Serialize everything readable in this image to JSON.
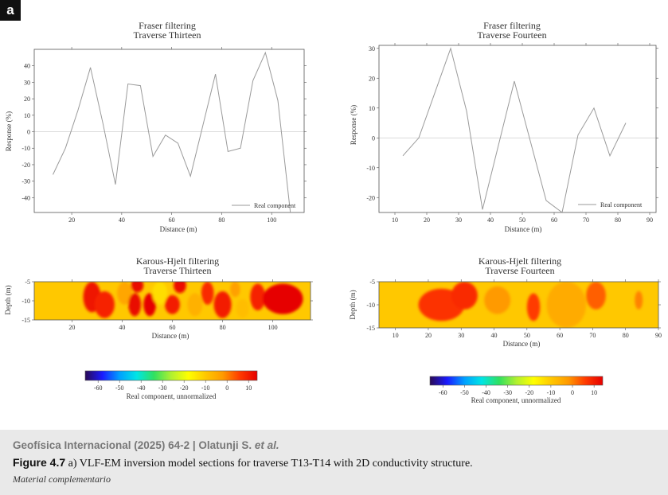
{
  "panel_label": "a",
  "caption": {
    "journal": "Geofísica Internacional (2025) 64-2 | Olatunji S. ",
    "authors_suffix": "et al.",
    "figure_number": "Figure 4.7",
    "figure_text": " a) VLF-EM inversion model sections for traverse T13-T14 with 2D conductivity structure.",
    "material": "Material complementario"
  },
  "colors": {
    "line": "#9a9a9a",
    "axis": "#555555",
    "colorscale": [
      "#2a0a55",
      "#1a1aff",
      "#00a0ff",
      "#00e5e5",
      "#30e060",
      "#b0f030",
      "#ffff00",
      "#ffc800",
      "#ff9a00",
      "#ff3a00",
      "#e60000"
    ]
  },
  "chart_data": [
    {
      "type": "line",
      "id": "fraser-t13",
      "title": "Fraser filtering",
      "subtitle": "Traverse Thirteen",
      "xlabel": "Distance (m)",
      "ylabel": "Response (%)",
      "xlim": [
        5,
        113
      ],
      "ylim": [
        -49,
        50
      ],
      "xticks": [
        20,
        40,
        60,
        80,
        100
      ],
      "yticks": [
        40,
        30,
        20,
        10,
        0,
        -10,
        -20,
        -30,
        -40
      ],
      "series": [
        {
          "name": "Real component",
          "x": [
            12.5,
            17.5,
            22.5,
            27.5,
            32.5,
            37.5,
            42.5,
            47.5,
            52.5,
            57.5,
            62.5,
            67.5,
            72.5,
            77.5,
            82.5,
            87.5,
            92.5,
            97.5,
            102.5,
            107.5
          ],
          "values": [
            -26,
            -10,
            13,
            39,
            5,
            -32,
            29,
            28,
            -15,
            -2,
            -7,
            -27,
            4,
            35,
            -12,
            -10,
            31,
            48,
            19,
            -49
          ]
        }
      ],
      "legend": "bottom-right"
    },
    {
      "type": "line",
      "id": "fraser-t14",
      "title": "Fraser filtering",
      "subtitle": "Traverse Fourteen",
      "xlabel": "Distance (m)",
      "ylabel": "Response (%)",
      "xlim": [
        5,
        92
      ],
      "ylim": [
        -25,
        31
      ],
      "xticks": [
        10,
        20,
        30,
        40,
        50,
        60,
        70,
        80,
        90
      ],
      "yticks": [
        30,
        20,
        10,
        0,
        -10,
        -20
      ],
      "series": [
        {
          "name": "Real component",
          "x": [
            12.5,
            17.5,
            27.5,
            32.5,
            37.5,
            47.5,
            57.5,
            62.5,
            67.5,
            72.5,
            77.5,
            82.5
          ],
          "values": [
            -6,
            0,
            30,
            9,
            -24,
            19,
            -21,
            -25,
            1,
            10,
            -6,
            5
          ]
        }
      ],
      "legend": "bottom-right"
    },
    {
      "type": "heatmap",
      "id": "karous-t13",
      "title": "Karous-Hjelt filtering",
      "subtitle": "Traverse Thirteen",
      "xlabel": "Distance (m)",
      "ylabel": "Depth (m)",
      "xlim": [
        5,
        115
      ],
      "ylim": [
        -15,
        -5
      ],
      "xticks": [
        20,
        40,
        60,
        80,
        100
      ],
      "yticks": [
        -5,
        -10,
        -15
      ],
      "anomalies": [
        {
          "x": 28,
          "y": -9,
          "rx": 3.5,
          "ry": 4,
          "value": 11
        },
        {
          "x": 33,
          "y": -11,
          "rx": 4,
          "ry": 3.5,
          "value": 9
        },
        {
          "x": 41,
          "y": -8,
          "rx": 3,
          "ry": 3,
          "value": -4
        },
        {
          "x": 45,
          "y": -11,
          "rx": 2.5,
          "ry": 3,
          "value": 13
        },
        {
          "x": 46,
          "y": -6,
          "rx": 2.5,
          "ry": 1.8,
          "value": 13
        },
        {
          "x": 51,
          "y": -11,
          "rx": 2.5,
          "ry": 3,
          "value": 14
        },
        {
          "x": 55,
          "y": -8,
          "rx": 3,
          "ry": 3,
          "value": -13
        },
        {
          "x": 60,
          "y": -11,
          "rx": 3,
          "ry": 2.5,
          "value": 10
        },
        {
          "x": 63,
          "y": -6,
          "rx": 2.5,
          "ry": 2,
          "value": 12
        },
        {
          "x": 69,
          "y": -11,
          "rx": 3,
          "ry": 3,
          "value": -6
        },
        {
          "x": 74,
          "y": -8,
          "rx": 2.5,
          "ry": 3,
          "value": 8
        },
        {
          "x": 80,
          "y": -11,
          "rx": 3.5,
          "ry": 3.5,
          "value": 10
        },
        {
          "x": 85,
          "y": -7,
          "rx": 2,
          "ry": 2,
          "value": -3
        },
        {
          "x": 88,
          "y": -12,
          "rx": 2.5,
          "ry": 2.5,
          "value": -8
        },
        {
          "x": 94,
          "y": -9,
          "rx": 3,
          "ry": 3.5,
          "value": 9
        },
        {
          "x": 104,
          "y": -9.5,
          "rx": 8,
          "ry": 4,
          "value": 14
        }
      ]
    },
    {
      "type": "heatmap",
      "id": "karous-t14",
      "title": "Karous-Hjelt filtering",
      "subtitle": "Traverse Fourteen",
      "xlabel": "Distance (m)",
      "ylabel": "Depth (m)",
      "xlim": [
        5,
        90
      ],
      "ylim": [
        -15,
        -5
      ],
      "xticks": [
        10,
        20,
        30,
        40,
        50,
        60,
        70,
        80,
        90
      ],
      "yticks": [
        -5,
        -10,
        -15
      ],
      "anomalies": [
        {
          "x": 24,
          "y": -10,
          "rx": 7,
          "ry": 3.5,
          "value": 7
        },
        {
          "x": 31,
          "y": -8,
          "rx": 4,
          "ry": 3,
          "value": 8
        },
        {
          "x": 41,
          "y": -9,
          "rx": 4,
          "ry": 3,
          "value": -2
        },
        {
          "x": 52,
          "y": -10.5,
          "rx": 2,
          "ry": 3,
          "value": 6
        },
        {
          "x": 62,
          "y": -10,
          "rx": 6,
          "ry": 5,
          "value": -5
        },
        {
          "x": 71,
          "y": -8,
          "rx": 3,
          "ry": 3,
          "value": 3
        },
        {
          "x": 84,
          "y": -9,
          "rx": 1.2,
          "ry": 2,
          "value": 0
        }
      ]
    },
    {
      "type": "colorbar",
      "id": "colorbar-left",
      "label": "Real component, unnormalized",
      "range": [
        -66,
        14
      ],
      "ticks": [
        -60,
        -50,
        -40,
        -30,
        -20,
        -10,
        0,
        10
      ]
    },
    {
      "type": "colorbar",
      "id": "colorbar-right",
      "label": "Real component, unnormalized",
      "range": [
        -66,
        14
      ],
      "ticks": [
        -60,
        -50,
        -40,
        -30,
        -20,
        -10,
        0,
        10
      ]
    }
  ]
}
